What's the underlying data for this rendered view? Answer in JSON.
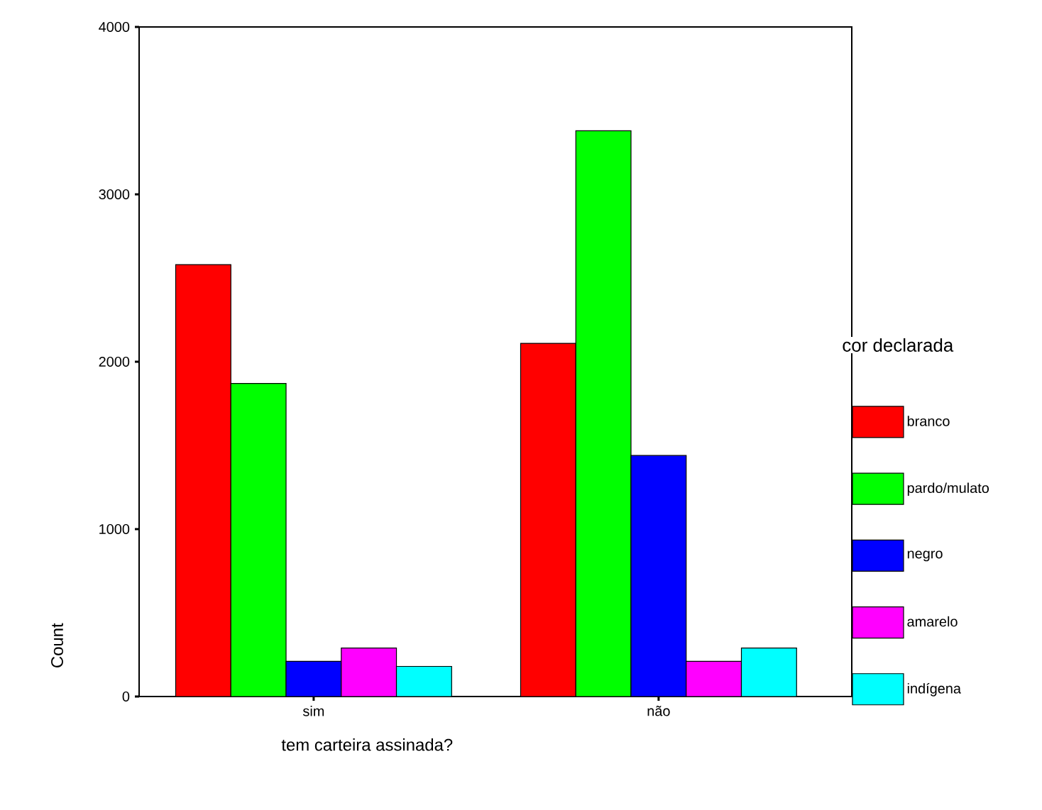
{
  "chart_data": {
    "type": "bar",
    "xlabel": "tem carteira assinada?",
    "ylabel": "Count",
    "legend_title": "cor declarada",
    "categories": [
      "sim",
      "não"
    ],
    "series": [
      {
        "name": "branco",
        "color": "#ff0000",
        "values": [
          2580,
          2110
        ]
      },
      {
        "name": "pardo/mulato",
        "color": "#00ff00",
        "values": [
          1870,
          3380
        ]
      },
      {
        "name": "negro",
        "color": "#0000ff",
        "values": [
          210,
          1440
        ]
      },
      {
        "name": "amarelo",
        "color": "#ff00ff",
        "values": [
          290,
          210
        ]
      },
      {
        "name": "indígena",
        "color": "#00ffff",
        "values": [
          180,
          290
        ]
      }
    ],
    "ylim": [
      0,
      4000
    ],
    "yticks": [
      0,
      1000,
      2000,
      3000,
      4000
    ],
    "grid": false,
    "legend": "right"
  }
}
